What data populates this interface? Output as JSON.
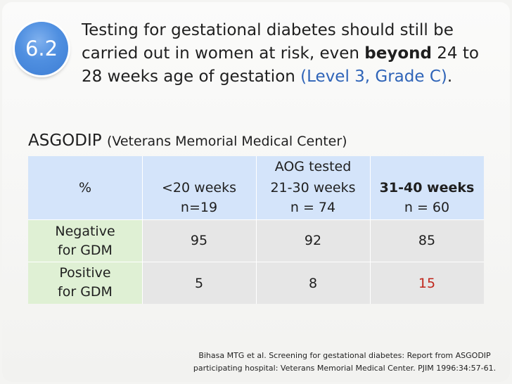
{
  "badge": {
    "number": "6.2"
  },
  "headline": {
    "line1": "Testing for gestational diabetes should still be",
    "line2_pre": "carried out in women at risk, even ",
    "line2_bold": "beyond",
    "line2_post": " 24 to",
    "line3_pre": "28 weeks age of gestation ",
    "line3_level": "(Level 3, Grade C)",
    "line3_end": "."
  },
  "study": {
    "name": "ASGODIP",
    "site": "(Veterans Memorial Medical Center)"
  },
  "table": {
    "corner": "%",
    "group_header": "AOG tested",
    "columns": [
      {
        "label": "<20 weeks",
        "n": "n=19"
      },
      {
        "label": "21-30 weeks",
        "n": "n = 74"
      },
      {
        "label": "31-40 weeks",
        "n": "n = 60"
      }
    ],
    "rows": [
      {
        "label_line1": "Negative",
        "label_line2": "for GDM",
        "values": [
          "95",
          "92",
          "85"
        ]
      },
      {
        "label_line1": "Positive",
        "label_line2": "for GDM",
        "values": [
          "5",
          "8",
          "15"
        ]
      }
    ],
    "highlight_color": "#c0261c"
  },
  "citation": {
    "line1": "Bihasa MTG et al. Screening for gestational diabetes: Report from ASGODIP",
    "line2": "participating hospital: Veterans Memorial Medical Center. PJIM 1996:34:57-61."
  }
}
